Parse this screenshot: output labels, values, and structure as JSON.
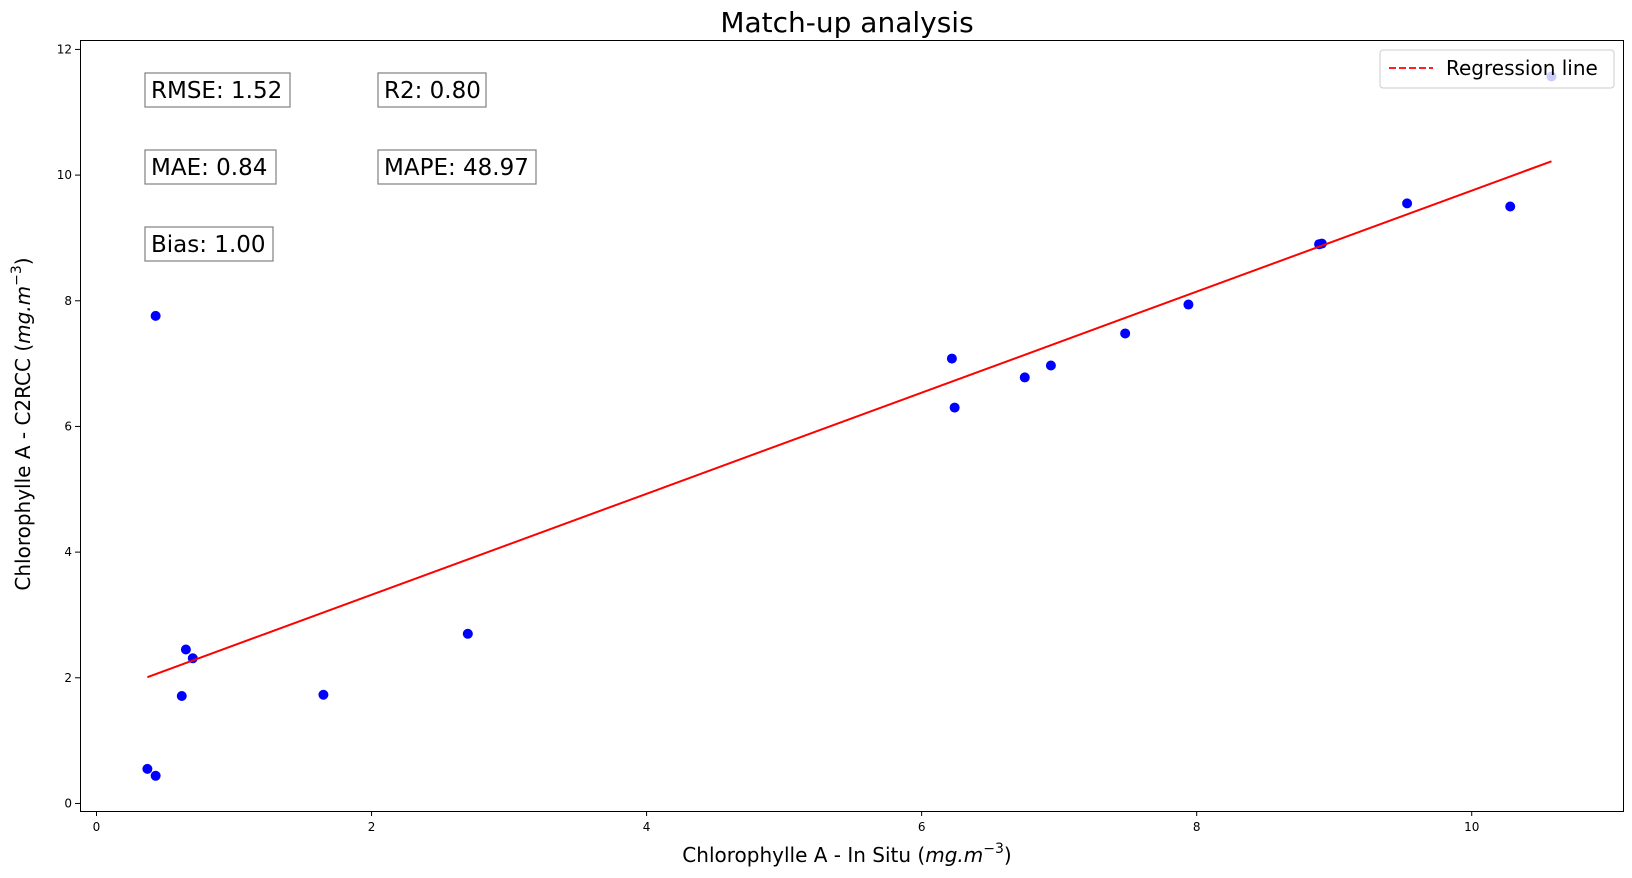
{
  "chart_data": {
    "type": "scatter",
    "title": "Match-up analysis",
    "xlabel_main": "Chlorophylle A - In Situ (",
    "xlabel_math": "mg.m",
    "xlabel_sup": "−3",
    "xlabel_close": ")",
    "ylabel_main": "Chlorophylle A - C2RCC (",
    "ylabel_math": "mg.m",
    "ylabel_sup": "−3",
    "ylabel_close": ")",
    "xlim": [
      -0.12,
      11.1
    ],
    "ylim": [
      -0.12,
      12.15
    ],
    "xticks": [
      0,
      2,
      4,
      6,
      8,
      10
    ],
    "yticks": [
      0,
      2,
      4,
      6,
      8,
      10,
      12
    ],
    "grid": false,
    "legend_position": "top-right",
    "point_color": "#0000ff",
    "line_color": "#ff0000",
    "series": [
      {
        "kind": "points",
        "x": [
          0.37,
          0.43,
          0.43,
          0.62,
          0.65,
          0.7,
          1.65,
          2.7,
          6.22,
          6.24,
          6.75,
          6.94,
          7.48,
          7.94,
          8.89,
          8.91,
          9.53,
          10.28,
          10.58
        ],
        "y": [
          0.55,
          0.44,
          7.76,
          1.71,
          2.45,
          2.31,
          1.73,
          2.7,
          7.08,
          6.3,
          6.78,
          6.97,
          7.48,
          7.94,
          8.9,
          8.91,
          9.55,
          9.5,
          11.57
        ]
      },
      {
        "name": "Regression line",
        "kind": "line",
        "x": [
          0.37,
          10.58
        ],
        "y": [
          2.01,
          10.22
        ]
      }
    ],
    "stats": [
      {
        "label": "RMSE: 1.52"
      },
      {
        "label": "R2: 0.80"
      },
      {
        "label": "MAE: 0.84"
      },
      {
        "label": "MAPE: 48.97"
      },
      {
        "label": "Bias: 1.00"
      }
    ]
  }
}
